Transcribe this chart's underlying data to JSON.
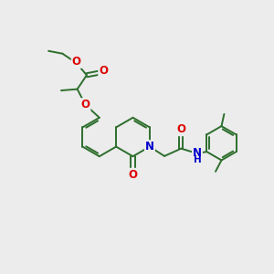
{
  "bg_color": "#ececec",
  "bond_color": "#2d6e2d",
  "bond_width": 1.4,
  "atom_colors": {
    "O": "#dd0000",
    "N": "#0000cc",
    "C": "#2d6e2d"
  },
  "font_size": 8.5,
  "ring_r": 0.72
}
